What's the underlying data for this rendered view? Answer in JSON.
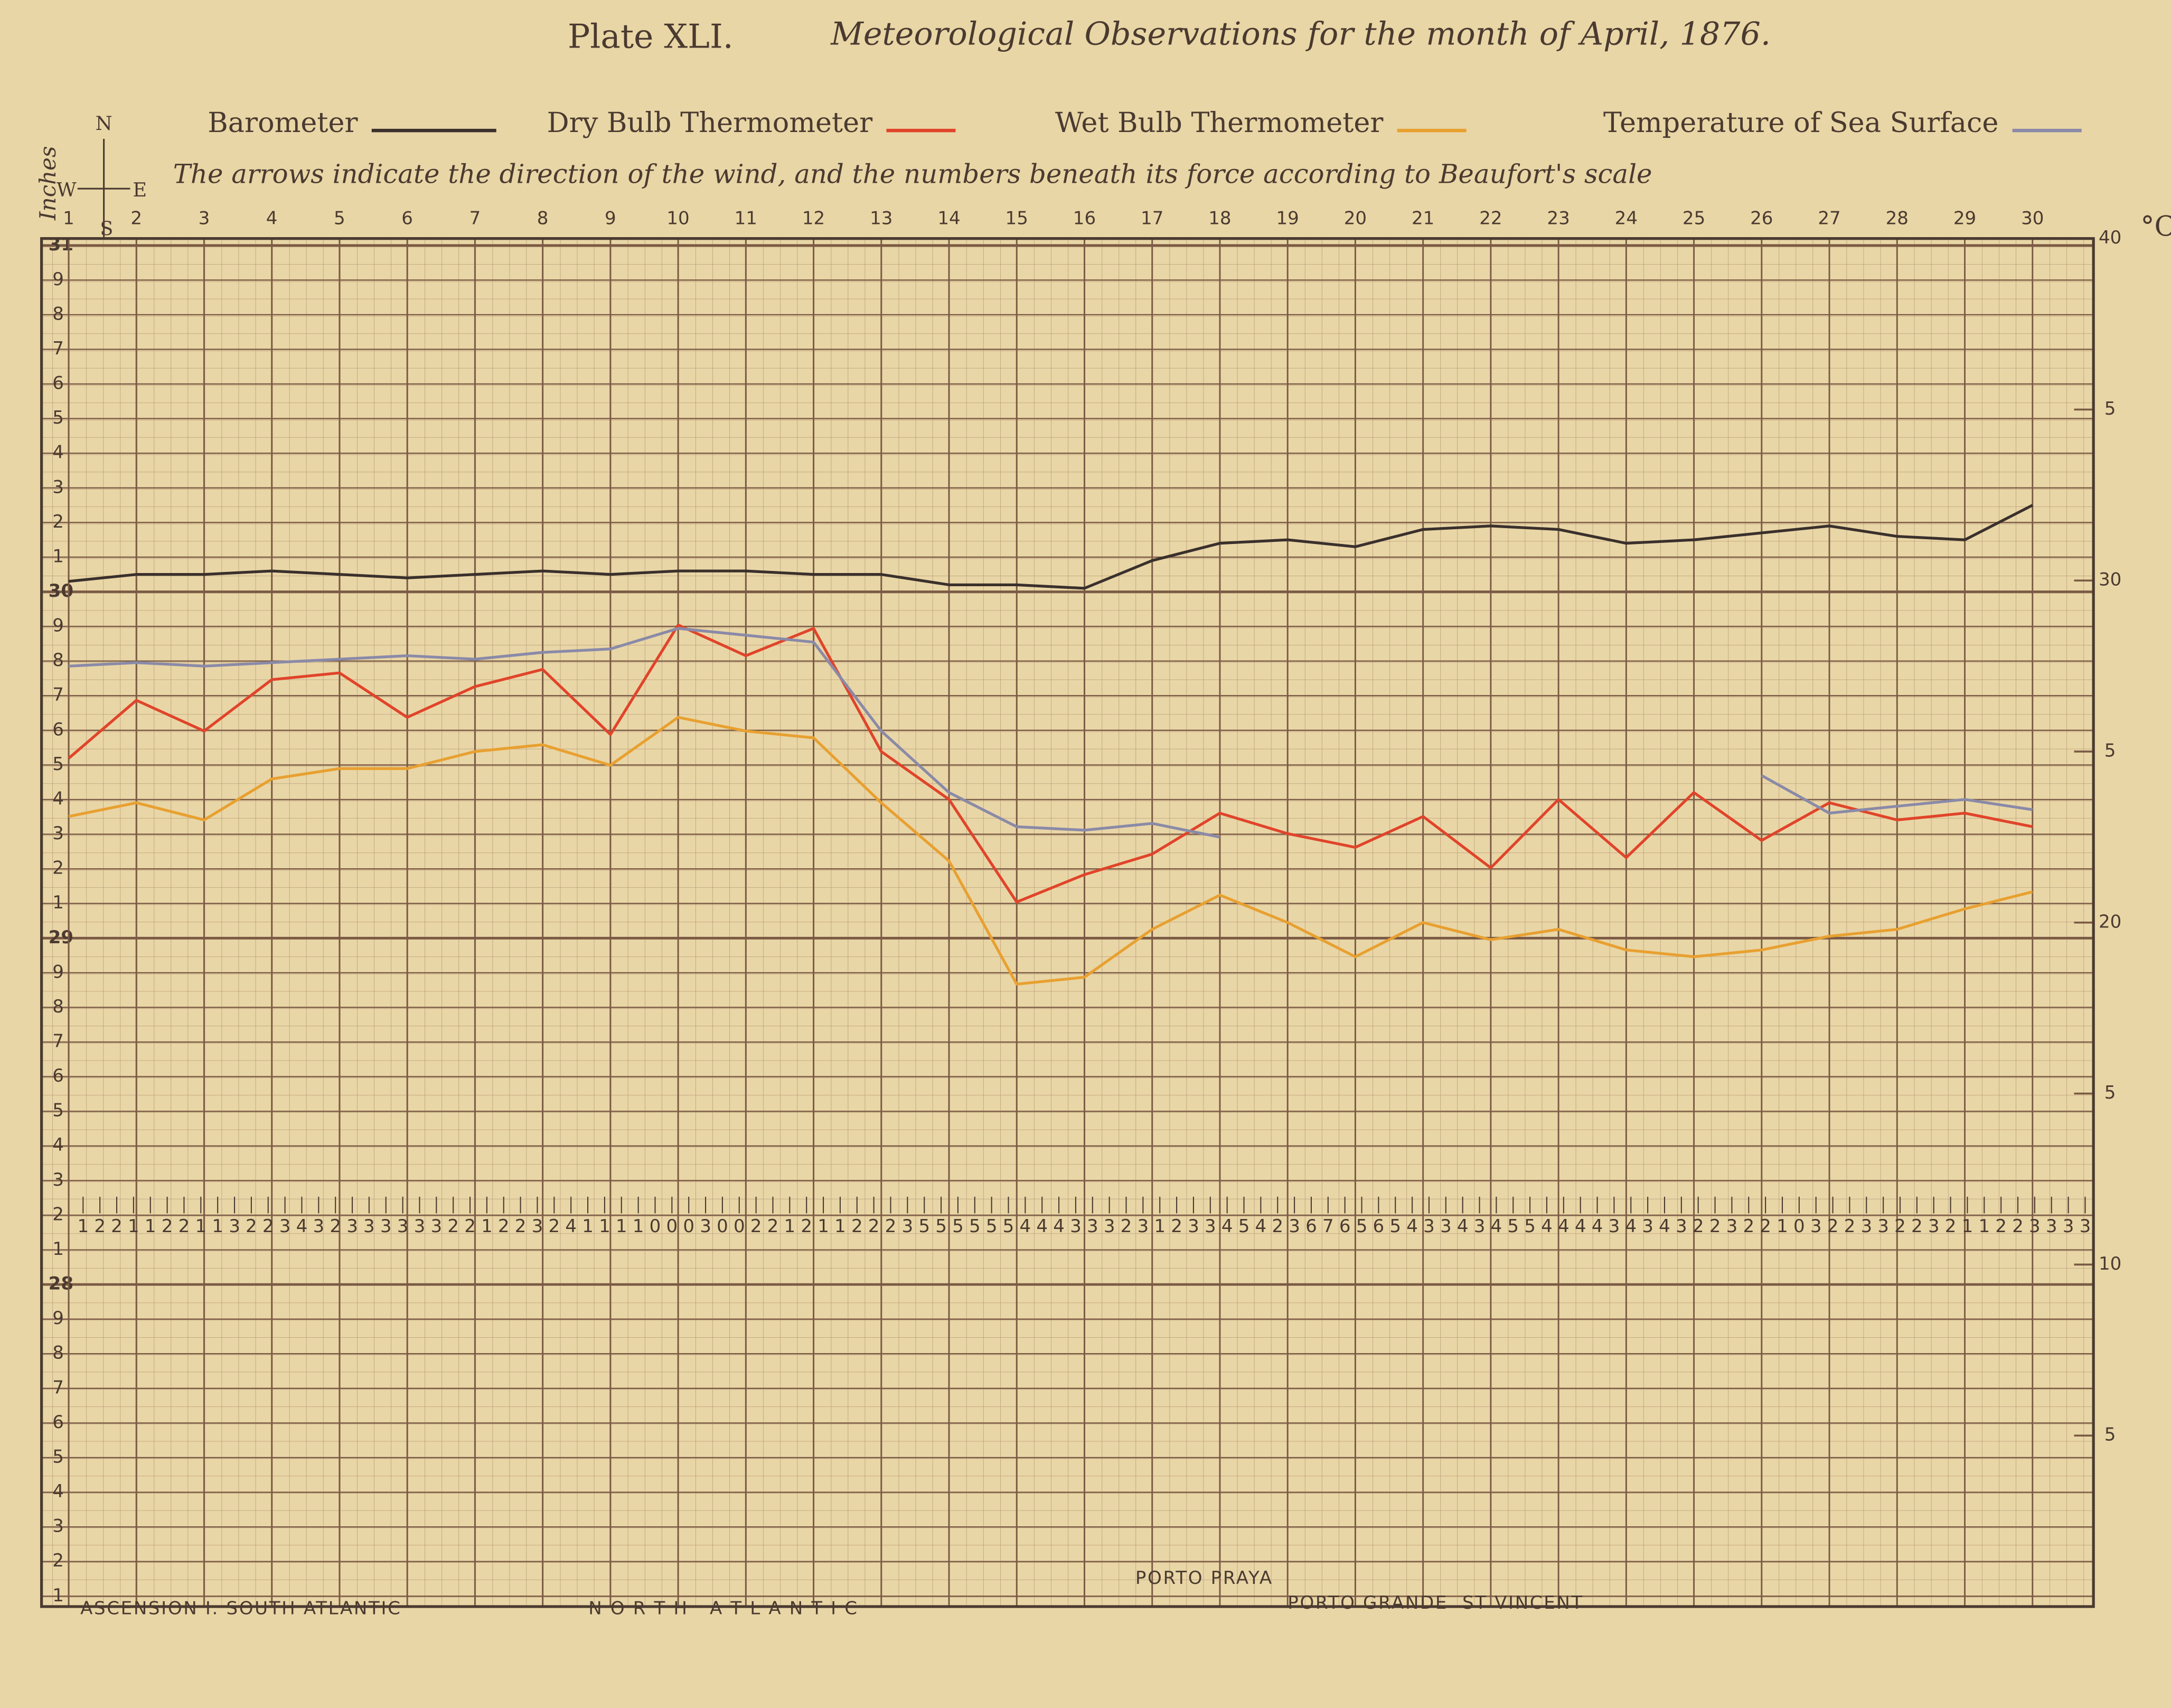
{
  "chart_data": {
    "type": "line",
    "plate": "Plate XLI.",
    "title": "Meteorological Observations for the month of April, 1876.",
    "subtitle": "The arrows indicate the direction of the wind, and the numbers beneath its force according to Beaufort's scale",
    "ylabel": "Inches",
    "y2label": "°C",
    "compass": [
      "N",
      "S",
      "W",
      "E"
    ],
    "annotations": [
      "ASCENSION I. SOUTH ATLANTIC",
      "N O R T H   A T L A N T I C",
      "PORTO PRAYA",
      "PORTO GRANDE  ST VINCENT"
    ],
    "x": [
      1,
      2,
      3,
      4,
      5,
      6,
      7,
      8,
      9,
      10,
      11,
      12,
      13,
      14,
      15,
      16,
      17,
      18,
      19,
      20,
      21,
      22,
      23,
      24,
      25,
      26,
      27,
      28,
      29,
      30
    ],
    "xlim": [
      0.6,
      30.9
    ],
    "xticks": [
      1,
      2,
      3,
      4,
      5,
      6,
      7,
      8,
      9,
      10,
      11,
      12,
      13,
      14,
      15,
      16,
      17,
      18,
      19,
      20,
      21,
      22,
      23,
      24,
      25,
      26,
      27,
      28,
      29,
      30
    ],
    "ylim": [
      27.07,
      31.02
    ],
    "yticks": [
      {
        "value": 27.1,
        "label": "1"
      },
      {
        "value": 27.2,
        "label": "2"
      },
      {
        "value": 27.3,
        "label": "3"
      },
      {
        "value": 27.4,
        "label": "4"
      },
      {
        "value": 27.5,
        "label": "5"
      },
      {
        "value": 27.6,
        "label": "6"
      },
      {
        "value": 27.7,
        "label": "7"
      },
      {
        "value": 27.8,
        "label": "8"
      },
      {
        "value": 27.9,
        "label": "9"
      },
      28,
      {
        "value": 28.1,
        "label": "1"
      },
      {
        "value": 28.2,
        "label": "2"
      },
      {
        "value": 28.3,
        "label": "3"
      },
      {
        "value": 28.4,
        "label": "4"
      },
      {
        "value": 28.5,
        "label": "5"
      },
      {
        "value": 28.6,
        "label": "6"
      },
      {
        "value": 28.7,
        "label": "7"
      },
      {
        "value": 28.8,
        "label": "8"
      },
      {
        "value": 28.9,
        "label": "9"
      },
      29,
      {
        "value": 29.1,
        "label": "1"
      },
      {
        "value": 29.2,
        "label": "2"
      },
      {
        "value": 29.3,
        "label": "3"
      },
      {
        "value": 29.4,
        "label": "4"
      },
      {
        "value": 29.5,
        "label": "5"
      },
      {
        "value": 29.6,
        "label": "6"
      },
      {
        "value": 29.7,
        "label": "7"
      },
      {
        "value": 29.8,
        "label": "8"
      },
      {
        "value": 29.9,
        "label": "9"
      },
      30,
      {
        "value": 30.1,
        "label": "1"
      },
      {
        "value": 30.2,
        "label": "2"
      },
      {
        "value": 30.3,
        "label": "3"
      },
      {
        "value": 30.4,
        "label": "4"
      },
      {
        "value": 30.5,
        "label": "5"
      },
      {
        "value": 30.6,
        "label": "6"
      },
      {
        "value": 30.7,
        "label": "7"
      },
      {
        "value": 30.8,
        "label": "8"
      },
      {
        "value": 30.9,
        "label": "9"
      },
      31
    ],
    "y2lim": [
      0,
      40
    ],
    "y2ticks": [
      5,
      10,
      {
        "value": 15,
        "label": "5"
      },
      20,
      {
        "value": 25,
        "label": "5"
      },
      30,
      {
        "value": 35,
        "label": "5"
      },
      40
    ],
    "grid": true,
    "series": [
      {
        "name": "Barometer",
        "color": "#3a302c",
        "axis": "y",
        "values": [
          30.03,
          30.05,
          30.05,
          30.06,
          30.05,
          30.04,
          30.05,
          30.06,
          30.05,
          30.06,
          30.06,
          30.05,
          30.05,
          30.02,
          30.02,
          30.01,
          30.09,
          30.14,
          30.15,
          30.13,
          30.18,
          30.19,
          30.18,
          30.14,
          30.15,
          30.17,
          30.19,
          30.16,
          30.15,
          30.25
        ]
      },
      {
        "name": "Dry Bulb Thermometer",
        "color": "#e0442a",
        "axis": "y2",
        "values": [
          24.8,
          26.5,
          25.6,
          27.1,
          27.3,
          26.0,
          26.9,
          27.4,
          25.5,
          28.7,
          27.8,
          28.6,
          25.0,
          23.6,
          20.6,
          21.4,
          22.0,
          23.2,
          22.6,
          22.2,
          23.1,
          21.6,
          23.6,
          21.9,
          23.8,
          22.4,
          23.5,
          23.0,
          23.2,
          22.8
        ]
      },
      {
        "name": "Wet Bulb Thermometer",
        "color": "#e8a030",
        "axis": "y2",
        "values": [
          23.1,
          23.5,
          23.0,
          24.2,
          24.5,
          24.5,
          25.0,
          25.2,
          24.6,
          26.0,
          25.6,
          25.4,
          23.5,
          21.8,
          18.2,
          18.4,
          19.8,
          20.8,
          20.0,
          19.0,
          20.0,
          19.5,
          19.8,
          19.2,
          19.0,
          19.2,
          19.6,
          19.8,
          20.4,
          20.9
        ]
      },
      {
        "name": "Temperature of Sea Surface",
        "color": "#8a8aa8",
        "axis": "y2",
        "values": [
          27.5,
          27.6,
          27.5,
          27.6,
          27.7,
          27.8,
          27.7,
          27.9,
          28.0,
          28.6,
          28.4,
          28.2,
          25.6,
          23.8,
          22.8,
          22.7,
          22.9,
          22.5,
          null,
          null,
          null,
          null,
          null,
          null,
          null,
          24.3,
          23.2,
          23.4,
          23.6,
          23.3
        ]
      }
    ],
    "wind_force": [
      1,
      2,
      2,
      1,
      1,
      2,
      2,
      1,
      1,
      3,
      2,
      2,
      3,
      4,
      3,
      2,
      3,
      3,
      3,
      3,
      3,
      3,
      2,
      2,
      1,
      2,
      2,
      3,
      2,
      4,
      1,
      1,
      1,
      1,
      0,
      0,
      0,
      3,
      0,
      0,
      2,
      2,
      1,
      2,
      1,
      1,
      2,
      2,
      2,
      3,
      5,
      5,
      5,
      5,
      5,
      5,
      4,
      4,
      4,
      3,
      3,
      3,
      2,
      3,
      1,
      2,
      3,
      3,
      4,
      5,
      4,
      2,
      3,
      6,
      7,
      6,
      5,
      6,
      5,
      4,
      3,
      3,
      4,
      3,
      4,
      5,
      5,
      4,
      4,
      4,
      4,
      3,
      4,
      3,
      4,
      3,
      2,
      2,
      3,
      2,
      2,
      1,
      0,
      3,
      2,
      2,
      3,
      3,
      2,
      2,
      3,
      2,
      1,
      1,
      2,
      2,
      3,
      3,
      3,
      3
    ]
  }
}
